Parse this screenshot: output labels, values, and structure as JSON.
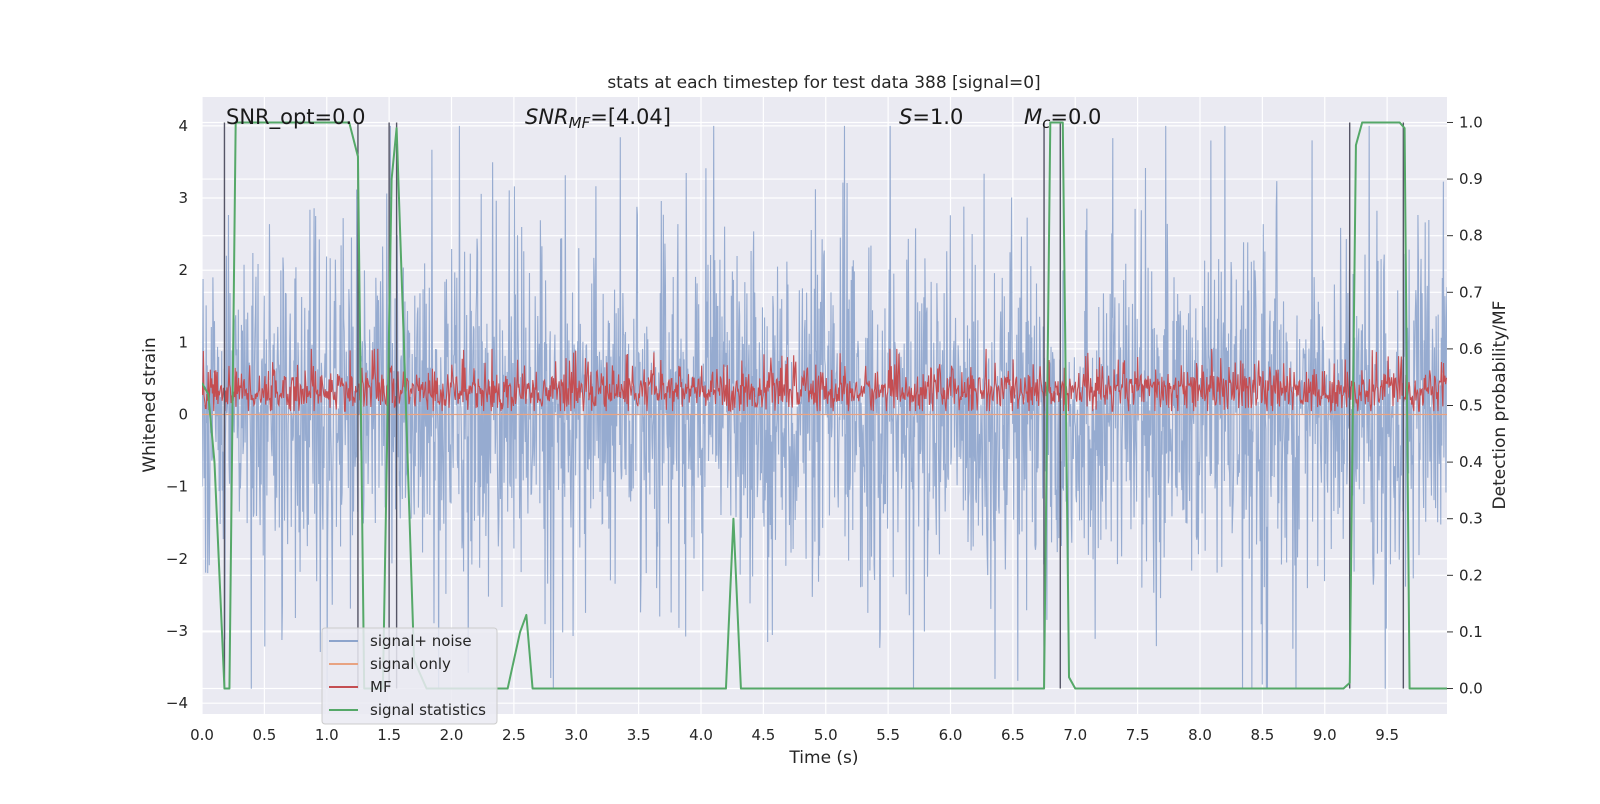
{
  "chart_data": {
    "type": "line",
    "title": "stats at each timestep for test data 388 [signal=0]",
    "xlabel": "Time (s)",
    "ylabel": "Whitened strain",
    "y2label": "Detection probability/MF",
    "xlim": [
      0.0,
      9.98
    ],
    "ylim": [
      -4.15,
      4.4
    ],
    "y2lim": [
      -0.045,
      1.045
    ],
    "xticks": [
      "0.0",
      "0.5",
      "1.0",
      "1.5",
      "2.0",
      "2.5",
      "3.0",
      "3.5",
      "4.0",
      "4.5",
      "5.0",
      "5.5",
      "6.0",
      "6.5",
      "7.0",
      "7.5",
      "8.0",
      "8.5",
      "9.0",
      "9.5"
    ],
    "yticks": [
      "4",
      "3",
      "2",
      "1",
      "0",
      "−1",
      "−2",
      "−3",
      "−4"
    ],
    "y2ticks": [
      "1.0",
      "0.9",
      "0.8",
      "0.7",
      "0.6",
      "0.5",
      "0.4",
      "0.3",
      "0.2",
      "0.1",
      "0.0"
    ],
    "grid": true,
    "annotations": [
      {
        "id": "snr_opt",
        "text": "SNR_opt=0.0"
      },
      {
        "id": "snr_mf",
        "text": "SNR_MF=[4.04]"
      },
      {
        "id": "s",
        "text": "S=1.0"
      },
      {
        "id": "mc",
        "text": "M_c=0.0"
      }
    ],
    "legend": {
      "placement": "lower-left",
      "entries": [
        {
          "label": "signal+ noise",
          "color": "#8da4cc"
        },
        {
          "label": "signal only",
          "color": "#e8a382"
        },
        {
          "label": "MF",
          "color": "#c44e52"
        },
        {
          "label": "signal statistics",
          "color": "#55a868"
        }
      ]
    },
    "series": [
      {
        "name": "signal+ noise",
        "color": "#8da4cc",
        "axis": "left",
        "range": [
          -3.8,
          4.0
        ],
        "note": "dense random strain"
      },
      {
        "name": "signal only",
        "color": "#e8a382",
        "axis": "left",
        "values_constant": 0.0
      },
      {
        "name": "MF",
        "color": "#c44e52",
        "axis": "right",
        "range": [
          0.49,
          0.6
        ]
      },
      {
        "name": "signal statistics",
        "color": "#55a868",
        "axis": "right",
        "x": [
          0.0,
          0.05,
          0.1,
          0.18,
          0.22,
          0.27,
          0.5,
          1.0,
          1.18,
          1.25,
          1.3,
          1.45,
          1.52,
          1.56,
          1.62,
          1.7,
          1.8,
          2.3,
          2.45,
          2.5,
          2.55,
          2.6,
          2.65,
          3.0,
          4.0,
          4.2,
          4.26,
          4.32,
          4.5,
          6.0,
          6.75,
          6.8,
          6.86,
          6.9,
          6.95,
          7.0,
          7.05,
          8.0,
          9.15,
          9.2,
          9.25,
          9.3,
          9.5,
          9.6,
          9.64,
          9.68,
          9.8,
          9.98
        ],
        "values": [
          0.54,
          0.52,
          0.4,
          0.0,
          0.0,
          1.0,
          1.0,
          1.0,
          1.0,
          0.94,
          0.0,
          0.0,
          0.9,
          0.99,
          0.6,
          0.05,
          0.0,
          0.0,
          0.0,
          0.05,
          0.1,
          0.13,
          0.0,
          0.0,
          0.0,
          0.0,
          0.3,
          0.0,
          0.0,
          0.0,
          0.0,
          1.0,
          1.0,
          1.0,
          0.02,
          0.0,
          0.0,
          0.0,
          0.0,
          0.01,
          0.96,
          1.0,
          1.0,
          1.0,
          0.99,
          0.0,
          0.0,
          0.0
        ]
      }
    ],
    "vlines_x": [
      0.18,
      1.25,
      1.5,
      1.56,
      6.75,
      6.88,
      9.2,
      9.63
    ]
  }
}
